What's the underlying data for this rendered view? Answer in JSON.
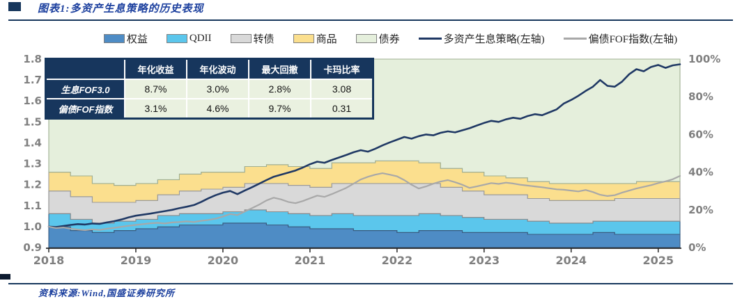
{
  "title": {
    "text": "图表1:多资产生息策略的历史表现"
  },
  "source": {
    "text": "资料来源:Wind,国盛证券研究所"
  },
  "colors": {
    "title_blue": "#1B3F9E",
    "rule_navy": "#16365C",
    "axis_label_gray": "#7F7F7F",
    "axis_line": "#262626",
    "table_header_bg": "#17365D",
    "table_data_bg": "#EAF1E0",
    "strategy_line": "#1F3864",
    "fof_index_line": "#A8A8A8"
  },
  "legend": [
    {
      "type": "box",
      "label": "权益",
      "color": "#4E8CC5"
    },
    {
      "type": "box",
      "label": "QDII",
      "color": "#5BC6EC"
    },
    {
      "type": "box",
      "label": "转债",
      "color": "#D9D9D9"
    },
    {
      "type": "box",
      "label": "商品",
      "color": "#FBDF8E"
    },
    {
      "type": "box",
      "label": "债券",
      "color": "#E5EFDC"
    },
    {
      "type": "line",
      "label": "多资产生息策略(左轴)",
      "color": "#1F3864"
    },
    {
      "type": "line",
      "label": "偏债FOF指数(左轴)",
      "color": "#A8A8A8"
    }
  ],
  "inset_table": {
    "columns": [
      "",
      "年化收益",
      "年化波动",
      "最大回撤",
      "卡玛比率"
    ],
    "rows": [
      {
        "label": "生息FOF3.0",
        "values": [
          "8.7%",
          "3.0%",
          "2.8%",
          "3.08"
        ]
      },
      {
        "label": "偏债FOF指数",
        "values": [
          "3.1%",
          "4.6%",
          "9.7%",
          "0.31"
        ]
      }
    ]
  },
  "chart_data": {
    "type": "combo-stacked-area-and-lines",
    "x_axis": {
      "ticks": [
        2018,
        2019,
        2020,
        2021,
        2022,
        2023,
        2024,
        2025
      ],
      "start": 2018,
      "end": 2025.25
    },
    "left_axis": {
      "min": 0.9,
      "max": 1.8,
      "ticks": [
        0.9,
        1.0,
        1.1,
        1.2,
        1.3,
        1.4,
        1.5,
        1.6,
        1.7,
        1.8
      ]
    },
    "right_axis": {
      "min": 0,
      "max": 100,
      "ticks": [
        0,
        20,
        40,
        60,
        80,
        100
      ],
      "unit": "%"
    },
    "grid": false,
    "legend_position": "top",
    "allocation_stack": {
      "axis": "right",
      "unit": "%",
      "start": 2018,
      "step_years": 0.25,
      "series": [
        {
          "name": "权益",
          "color": "#4E8CC5",
          "stroke": "#3A5A7E",
          "values": [
            11,
            9,
            8,
            9,
            10,
            11,
            12,
            12,
            13,
            13,
            12,
            11,
            10,
            10,
            9,
            9,
            8,
            9,
            9,
            8,
            8,
            8,
            7,
            7,
            7,
            8,
            7,
            7,
            7
          ]
        },
        {
          "name": "QDII",
          "color": "#5BC6EC",
          "stroke": "#3A5A7E",
          "values": [
            7,
            6,
            5,
            5,
            5,
            6,
            6,
            6,
            6,
            7,
            7,
            7,
            7,
            8,
            8,
            8,
            9,
            9,
            8,
            8,
            7,
            7,
            7,
            6,
            6,
            6,
            7,
            7,
            7
          ]
        },
        {
          "name": "转债",
          "color": "#D9D9D9",
          "stroke": "#8C8C8C",
          "values": [
            12,
            12,
            11,
            10,
            10,
            11,
            12,
            13,
            13,
            14,
            15,
            15,
            15,
            16,
            17,
            17,
            17,
            16,
            15,
            14,
            13,
            13,
            12,
            12,
            12,
            11,
            12,
            12,
            12
          ]
        },
        {
          "name": "商品",
          "color": "#FBDF8E",
          "stroke": "#9A9A9A",
          "values": [
            10,
            11,
            10,
            9,
            9,
            8,
            9,
            9,
            8,
            9,
            10,
            10,
            10,
            11,
            11,
            12,
            12,
            11,
            10,
            10,
            10,
            9,
            9,
            9,
            9,
            9,
            8,
            9,
            9
          ]
        },
        {
          "name": "债券",
          "color": "#E5EFDC",
          "stroke": "#9FAF92",
          "values": [
            60,
            62,
            66,
            67,
            66,
            64,
            61,
            60,
            60,
            57,
            56,
            57,
            58,
            55,
            55,
            54,
            54,
            55,
            58,
            60,
            62,
            63,
            65,
            66,
            66,
            66,
            66,
            65,
            65
          ]
        }
      ]
    },
    "lines": {
      "start": 2018,
      "step_months": 1,
      "series": [
        {
          "name": "多资产生息策略(左轴)",
          "axis": "left",
          "color": "#1F3864",
          "width": 2.6,
          "values": [
            1.0,
            0.998,
            1.003,
            1.008,
            1.012,
            1.01,
            1.015,
            1.013,
            1.02,
            1.026,
            1.034,
            1.044,
            1.052,
            1.057,
            1.062,
            1.068,
            1.074,
            1.08,
            1.088,
            1.095,
            1.103,
            1.118,
            1.135,
            1.15,
            1.162,
            1.17,
            1.155,
            1.172,
            1.188,
            1.205,
            1.222,
            1.238,
            1.248,
            1.258,
            1.268,
            1.282,
            1.298,
            1.31,
            1.305,
            1.318,
            1.33,
            1.342,
            1.355,
            1.365,
            1.358,
            1.372,
            1.388,
            1.402,
            1.415,
            1.428,
            1.42,
            1.432,
            1.44,
            1.436,
            1.448,
            1.455,
            1.45,
            1.46,
            1.47,
            1.483,
            1.495,
            1.505,
            1.5,
            1.512,
            1.52,
            1.515,
            1.528,
            1.537,
            1.532,
            1.546,
            1.56,
            1.588,
            1.605,
            1.625,
            1.648,
            1.668,
            1.7,
            1.672,
            1.668,
            1.692,
            1.728,
            1.752,
            1.742,
            1.762,
            1.772,
            1.758,
            1.77,
            1.775
          ]
        },
        {
          "name": "偏债FOF指数(左轴)",
          "axis": "left",
          "color": "#A8A8A8",
          "width": 2.2,
          "values": [
            1.0,
            0.993,
            0.996,
            0.99,
            0.986,
            0.983,
            0.987,
            0.984,
            0.99,
            0.994,
            0.999,
            1.004,
            1.008,
            1.012,
            1.016,
            1.018,
            1.015,
            1.02,
            1.022,
            1.025,
            1.022,
            1.028,
            1.032,
            1.038,
            1.048,
            1.06,
            1.055,
            1.072,
            1.088,
            1.105,
            1.125,
            1.138,
            1.13,
            1.118,
            1.112,
            1.122,
            1.135,
            1.148,
            1.142,
            1.155,
            1.17,
            1.185,
            1.205,
            1.225,
            1.238,
            1.248,
            1.255,
            1.248,
            1.24,
            1.222,
            1.2,
            1.182,
            1.192,
            1.205,
            1.215,
            1.222,
            1.212,
            1.2,
            1.185,
            1.192,
            1.2,
            1.208,
            1.204,
            1.21,
            1.206,
            1.2,
            1.196,
            1.192,
            1.188,
            1.183,
            1.178,
            1.176,
            1.172,
            1.168,
            1.175,
            1.165,
            1.152,
            1.146,
            1.15,
            1.162,
            1.172,
            1.182,
            1.19,
            1.198,
            1.208,
            1.216,
            1.226,
            1.242
          ]
        }
      ]
    }
  }
}
